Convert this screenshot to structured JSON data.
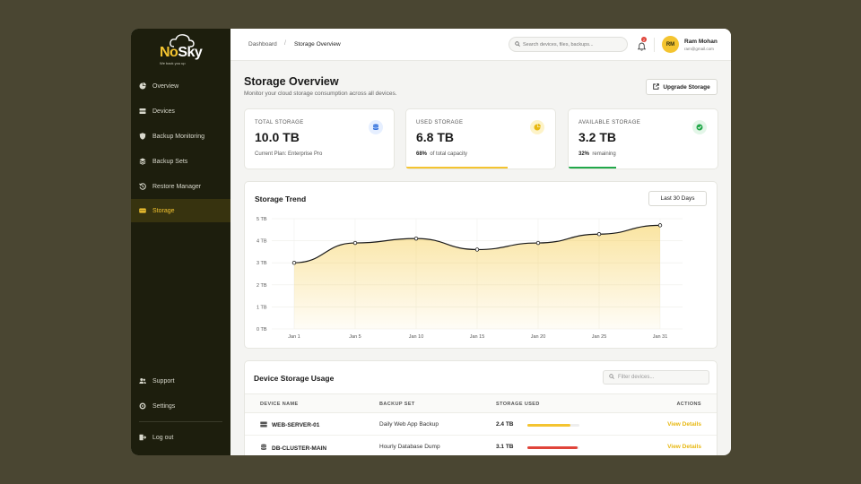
{
  "brand": {
    "name_no": "No",
    "name_sky": "Sky",
    "tagline": "We back you up"
  },
  "sidebar": {
    "items": [
      {
        "label": "Overview",
        "icon": "pie-chart-icon"
      },
      {
        "label": "Devices",
        "icon": "server-icon"
      },
      {
        "label": "Backup Monitoring",
        "icon": "shield-icon"
      },
      {
        "label": "Backup Sets",
        "icon": "layers-icon"
      },
      {
        "label": "Restore Manager",
        "icon": "history-icon"
      },
      {
        "label": "Storage",
        "icon": "hard-drive-icon",
        "active": true
      }
    ],
    "bottom": [
      {
        "label": "Support",
        "icon": "users-icon"
      },
      {
        "label": "Settings",
        "icon": "gear-icon"
      },
      {
        "label": "Log out",
        "icon": "logout-icon"
      }
    ]
  },
  "topbar": {
    "breadcrumb": [
      "Dashboard",
      "Storage Overview"
    ],
    "search_placeholder": "Search devices, files, backups...",
    "notification_count": "2",
    "user": {
      "initials": "RM",
      "name": "Ram Mohan",
      "email": "ram@gmail.com"
    }
  },
  "page": {
    "title": "Storage Overview",
    "subtitle": "Monitor your cloud storage consumption across all devices.",
    "upgrade_label": "Upgrade Storage"
  },
  "stats": [
    {
      "label": "TOTAL STORAGE",
      "value": "10.0 TB",
      "foot_text": "Current Plan: Enterprise Pro",
      "icon": "database-icon",
      "icon_color": "#2f6fdc",
      "icon_bg": "#e6efff"
    },
    {
      "label": "USED STORAGE",
      "value": "6.8 TB",
      "foot_bold": "68%",
      "foot_text": "of total capacity",
      "icon": "pie-chart-icon",
      "icon_color": "#e8b810",
      "icon_bg": "#fdf3c8",
      "progress": 0.68,
      "bar_color": "#f4c430"
    },
    {
      "label": "AVAILABLE STORAGE",
      "value": "3.2 TB",
      "foot_bold": "32%",
      "foot_text": "remaining",
      "icon": "check-circle-icon",
      "icon_color": "#22a84a",
      "icon_bg": "#e3f6e8",
      "progress": 0.32,
      "bar_color": "#22a84a"
    }
  ],
  "trend": {
    "title": "Storage Trend",
    "range": "Last 30 Days"
  },
  "chart_data": {
    "type": "area",
    "title": "Storage Trend",
    "x": [
      "Jan 1",
      "Jan 5",
      "Jan 10",
      "Jan 15",
      "Jan 20",
      "Jan 25",
      "Jan 31"
    ],
    "values": [
      3.0,
      3.9,
      4.1,
      3.6,
      3.9,
      4.3,
      4.7
    ],
    "y_ticks": [
      "0 TB",
      "1 TB",
      "2 TB",
      "3 TB",
      "4 TB",
      "5 TB"
    ],
    "ylim": [
      0,
      5
    ],
    "grid": true,
    "line_color": "#1a1a1a",
    "fill_color": "#f4c430"
  },
  "devices": {
    "title": "Device Storage Usage",
    "filter_placeholder": "Filter devices...",
    "columns": [
      "DEVICE NAME",
      "BACKUP SET",
      "STORAGE USED",
      "ACTIONS"
    ],
    "rows": [
      {
        "name": "WEB-SERVER-01",
        "backup_set": "Daily Web App Backup",
        "used": "2.4 TB",
        "usage": 0.82,
        "bar_color": "#f4c430",
        "action": "View Details"
      },
      {
        "name": "DB-CLUSTER-MAIN",
        "backup_set": "Hourly Database Dump",
        "used": "3.1 TB",
        "usage": 0.97,
        "bar_color": "#e0443a",
        "action": "View Details"
      }
    ]
  }
}
